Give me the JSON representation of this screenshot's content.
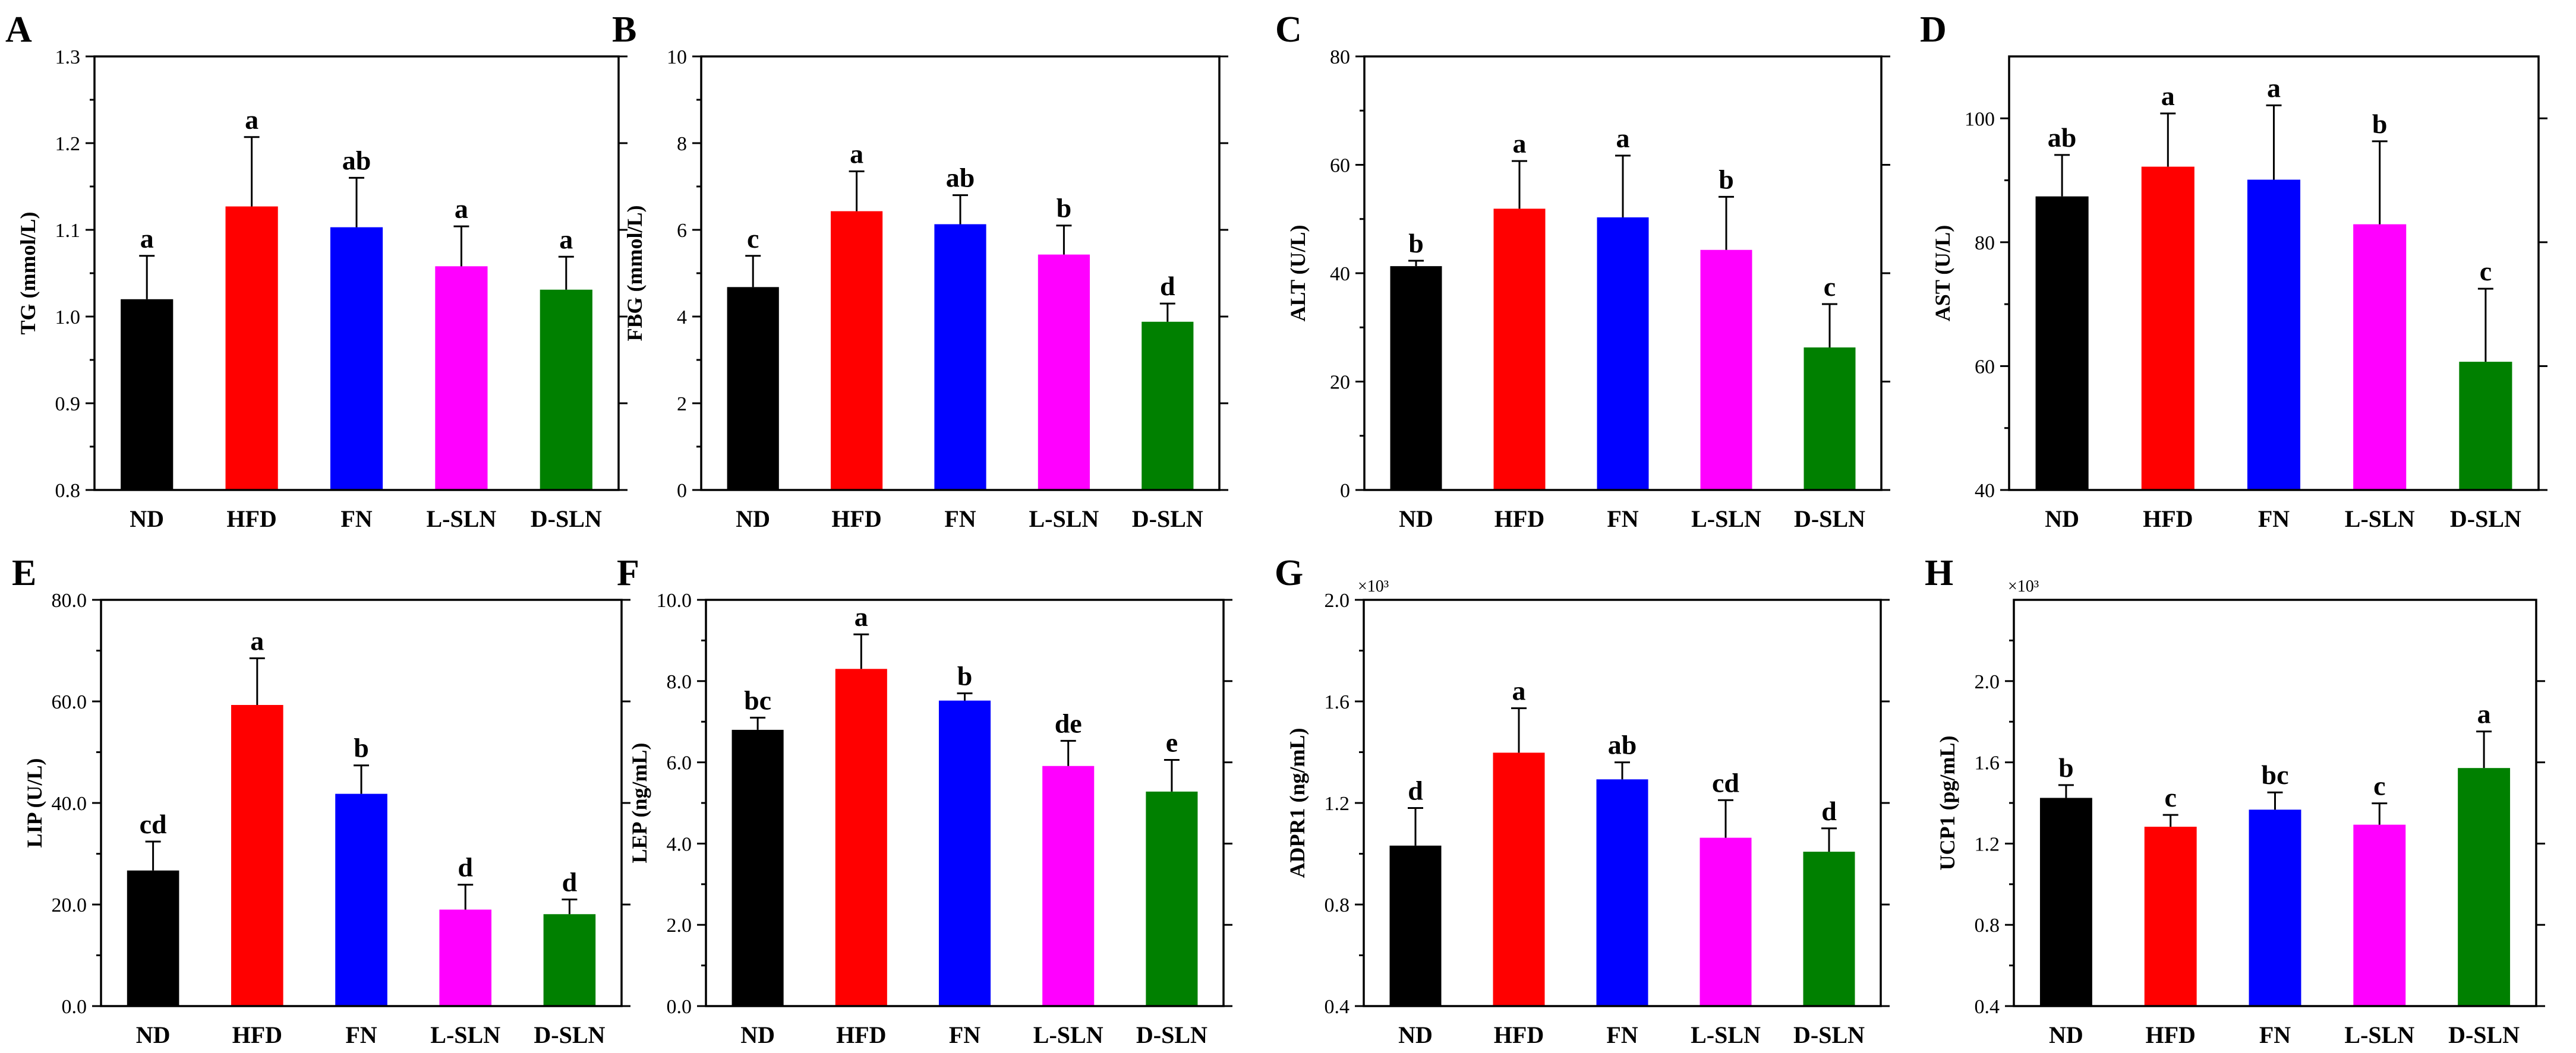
{
  "chart_data": [
    {
      "panel": "A",
      "type": "bar",
      "categories": [
        "ND",
        "HFD",
        "FN",
        "L-SLN",
        "D-SLN"
      ],
      "values": [
        1.02,
        1.127,
        1.103,
        1.058,
        1.031
      ],
      "errors": [
        0.05,
        0.08,
        0.057,
        0.046,
        0.038
      ],
      "significance": [
        "a",
        "a",
        "ab",
        "a",
        "a"
      ],
      "ylabel": "TG (mmol/L)",
      "ylim": [
        0.8,
        1.3
      ],
      "yticks": [
        0.8,
        0.9,
        1.0,
        1.1,
        1.2,
        1.3
      ],
      "ytick_labels": [
        "0.8",
        "0.9",
        "1.0",
        "1.1",
        "1.2",
        "1.3"
      ],
      "multiplier": ""
    },
    {
      "panel": "B",
      "type": "bar",
      "categories": [
        "ND",
        "HFD",
        "FN",
        "L-SLN",
        "D-SLN"
      ],
      "values": [
        4.68,
        6.43,
        6.13,
        5.43,
        3.88
      ],
      "errors": [
        0.72,
        0.92,
        0.67,
        0.67,
        0.42
      ],
      "significance": [
        "c",
        "a",
        "ab",
        "b",
        "d"
      ],
      "ylabel": "FBG (mmol/L)",
      "ylim": [
        0,
        10
      ],
      "yticks": [
        0,
        2,
        4,
        6,
        8,
        10
      ],
      "ytick_labels": [
        "0",
        "2",
        "4",
        "6",
        "8",
        "10"
      ],
      "multiplier": ""
    },
    {
      "panel": "C",
      "type": "bar",
      "categories": [
        "ND",
        "HFD",
        "FN",
        "L-SLN",
        "D-SLN"
      ],
      "values": [
        41.3,
        51.9,
        50.3,
        44.3,
        26.3
      ],
      "errors": [
        1.0,
        8.8,
        11.4,
        9.8,
        8.0
      ],
      "significance": [
        "b",
        "a",
        "a",
        "b",
        "c"
      ],
      "ylabel": "ALT (U/L)",
      "ylim": [
        0,
        80
      ],
      "yticks": [
        0,
        20,
        40,
        60,
        80
      ],
      "ytick_labels": [
        "0",
        "20",
        "40",
        "60",
        "80"
      ],
      "multiplier": ""
    },
    {
      "panel": "D",
      "type": "bar",
      "categories": [
        "ND",
        "HFD",
        "FN",
        "L-SLN",
        "D-SLN"
      ],
      "values": [
        87.4,
        92.2,
        90.1,
        82.9,
        60.7
      ],
      "errors": [
        6.7,
        8.6,
        12.0,
        13.4,
        11.8
      ],
      "significance": [
        "ab",
        "a",
        "a",
        "b",
        "c"
      ],
      "ylabel": "AST (U/L)",
      "ylim": [
        40,
        110
      ],
      "yticks": [
        40,
        60,
        80,
        100
      ],
      "ytick_labels": [
        "40",
        "60",
        "80",
        "100"
      ],
      "multiplier": ""
    },
    {
      "panel": "E",
      "type": "bar",
      "categories": [
        "ND",
        "HFD",
        "FN",
        "L-SLN",
        "D-SLN"
      ],
      "values": [
        26.7,
        59.3,
        41.8,
        19.0,
        18.1
      ],
      "errors": [
        5.7,
        9.2,
        5.6,
        4.9,
        2.9
      ],
      "significance": [
        "cd",
        "a",
        "b",
        "d",
        "d"
      ],
      "ylabel": "LIP (U/L)",
      "ylim": [
        0,
        80
      ],
      "yticks": [
        0,
        20,
        40,
        60,
        80
      ],
      "ytick_labels": [
        "0.0",
        "20.0",
        "40.0",
        "60.0",
        "80.0"
      ],
      "multiplier": ""
    },
    {
      "panel": "F",
      "type": "bar",
      "categories": [
        "ND",
        "HFD",
        "FN",
        "L-SLN",
        "D-SLN"
      ],
      "values": [
        6.8,
        8.3,
        7.52,
        5.91,
        5.28
      ],
      "errors": [
        0.3,
        0.85,
        0.18,
        0.62,
        0.78
      ],
      "significance": [
        "bc",
        "a",
        "b",
        "de",
        "e"
      ],
      "ylabel": "LEP (ng/mL)",
      "ylim": [
        0,
        10
      ],
      "yticks": [
        0,
        2,
        4,
        6,
        8,
        10
      ],
      "ytick_labels": [
        "0.0",
        "2.0",
        "4.0",
        "6.0",
        "8.0",
        "10.0"
      ],
      "multiplier": ""
    },
    {
      "panel": "G",
      "type": "bar",
      "categories": [
        "ND",
        "HFD",
        "FN",
        "L-SLN",
        "D-SLN"
      ],
      "values": [
        1.032,
        1.398,
        1.293,
        1.063,
        1.008
      ],
      "errors": [
        0.148,
        0.175,
        0.067,
        0.148,
        0.092
      ],
      "significance": [
        "d",
        "a",
        "ab",
        "cd",
        "d"
      ],
      "ylabel": "ADPR1 (ng/mL)",
      "ylim": [
        0.4,
        2.0
      ],
      "yticks": [
        0.4,
        0.8,
        1.2,
        1.6,
        2.0
      ],
      "ytick_labels": [
        "0.4",
        "0.8",
        "1.2",
        "1.6",
        "2.0"
      ],
      "multiplier": "×10³"
    },
    {
      "panel": "H",
      "type": "bar",
      "categories": [
        "ND",
        "HFD",
        "FN",
        "L-SLN",
        "D-SLN"
      ],
      "values": [
        1.425,
        1.283,
        1.367,
        1.293,
        1.572
      ],
      "errors": [
        0.063,
        0.058,
        0.085,
        0.105,
        0.18
      ],
      "significance": [
        "b",
        "c",
        "bc",
        "c",
        "a"
      ],
      "ylabel": "UCP1 (pg/mL)",
      "ylim": [
        0.4,
        2.4
      ],
      "yticks": [
        0.4,
        0.8,
        1.2,
        1.6,
        2.0
      ],
      "ytick_labels": [
        "0.4",
        "0.8",
        "1.2",
        "1.6",
        "2.0"
      ],
      "multiplier": "×10³"
    }
  ],
  "colors": [
    "#000000",
    "#ff0000",
    "#0000ff",
    "#ff00ff",
    "#008000"
  ]
}
